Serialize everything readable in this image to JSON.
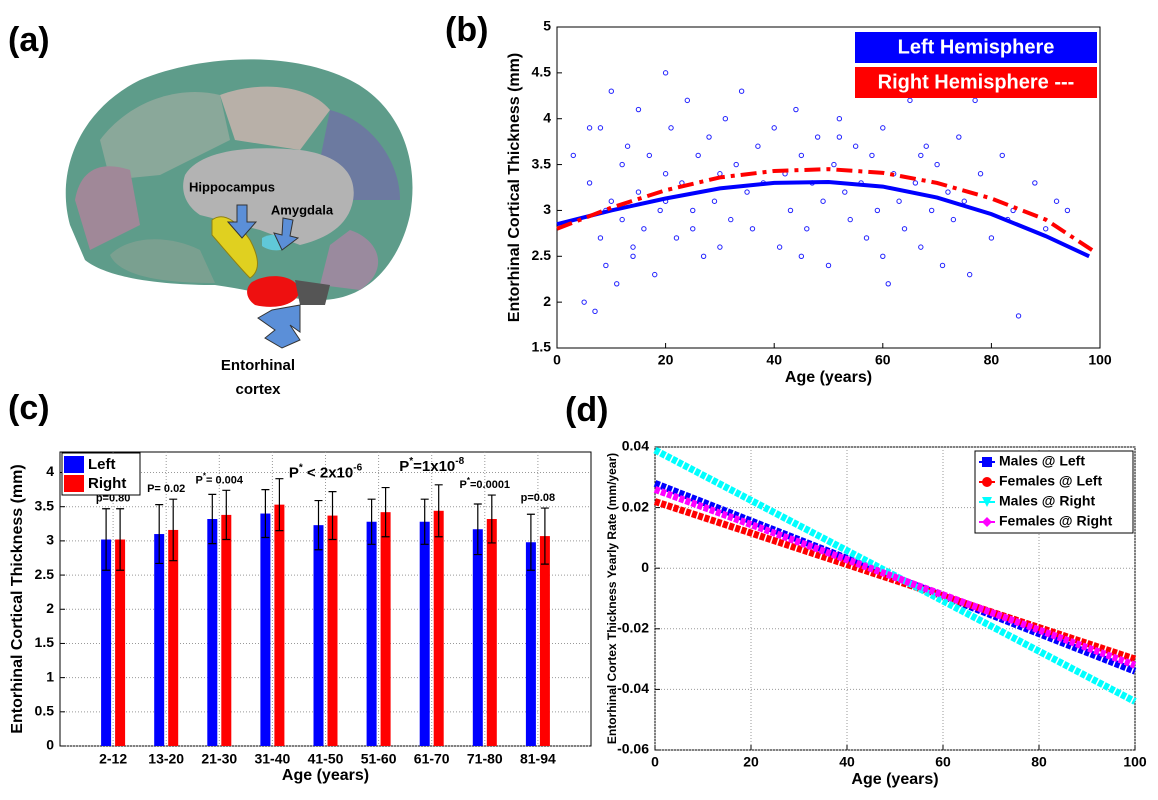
{
  "brain_panel": {
    "panel_label": "(a)",
    "labels": [
      "Hippocampus",
      "Amygdala"
    ],
    "entorhinal_label": [
      "Entorhinal",
      "cortex"
    ]
  },
  "chart_data": [
    {
      "panel_label": "(b)",
      "type": "scatter",
      "xlabel": "Age (years)",
      "ylabel": "Entorhinal Cortical Thickness (mm)",
      "xlim": [
        0,
        100
      ],
      "ylim": [
        1.5,
        5
      ],
      "xticks": [
        0,
        20,
        40,
        60,
        80,
        100
      ],
      "yticks": [
        1.5,
        2,
        2.5,
        3,
        3.5,
        4,
        4.5,
        5
      ],
      "legend": "upper right",
      "points": {
        "color": "#2222ff",
        "x": [
          3,
          5,
          6,
          7,
          8,
          8,
          9,
          10,
          10,
          11,
          12,
          12,
          13,
          14,
          15,
          15,
          16,
          17,
          18,
          19,
          20,
          20,
          21,
          22,
          23,
          24,
          25,
          26,
          27,
          28,
          29,
          30,
          31,
          32,
          33,
          34,
          35,
          36,
          37,
          38,
          40,
          41,
          42,
          43,
          44,
          45,
          46,
          47,
          48,
          49,
          50,
          51,
          52,
          53,
          54,
          55,
          56,
          57,
          58,
          59,
          60,
          61,
          62,
          63,
          64,
          65,
          66,
          67,
          68,
          69,
          70,
          71,
          72,
          73,
          74,
          75,
          76,
          78,
          80,
          82,
          84,
          85,
          88,
          90,
          92,
          94,
          6,
          9,
          14,
          20,
          25,
          30,
          45,
          52,
          60,
          67,
          77,
          83
        ],
        "y": [
          3.6,
          2.0,
          3.3,
          1.9,
          2.7,
          3.9,
          2.4,
          3.1,
          4.3,
          2.2,
          3.5,
          2.9,
          3.7,
          2.6,
          4.1,
          3.2,
          2.8,
          3.6,
          2.3,
          3.0,
          4.5,
          3.4,
          3.9,
          2.7,
          3.3,
          4.2,
          3.0,
          3.6,
          2.5,
          3.8,
          3.1,
          3.4,
          4.0,
          2.9,
          3.5,
          4.3,
          3.2,
          2.8,
          3.7,
          3.3,
          3.9,
          2.6,
          3.4,
          3.0,
          4.1,
          3.6,
          2.8,
          3.3,
          3.8,
          3.1,
          2.4,
          3.5,
          4.0,
          3.2,
          2.9,
          3.7,
          3.3,
          2.7,
          3.6,
          3.0,
          3.9,
          2.2,
          3.4,
          3.1,
          2.8,
          4.2,
          3.3,
          2.6,
          3.7,
          3.0,
          3.5,
          2.4,
          3.2,
          2.9,
          3.8,
          3.1,
          2.3,
          3.4,
          2.7,
          3.6,
          3.0,
          1.85,
          3.3,
          2.8,
          3.1,
          3.0,
          3.9,
          3.0,
          2.5,
          3.1,
          2.8,
          2.6,
          2.5,
          3.8,
          2.5,
          3.6,
          4.2,
          2.9
        ]
      },
      "series": [
        {
          "name": "Left Hemisphere",
          "color": "#0000ff",
          "dash": "solid",
          "x": [
            0,
            10,
            20,
            30,
            40,
            50,
            60,
            70,
            80,
            90,
            98
          ],
          "values": [
            2.85,
            3.0,
            3.13,
            3.24,
            3.3,
            3.31,
            3.26,
            3.14,
            2.96,
            2.72,
            2.5
          ]
        },
        {
          "name": "Right Hemisphere ---",
          "color": "#ff0000",
          "dash": "dashdot",
          "x": [
            0,
            10,
            20,
            30,
            40,
            50,
            60,
            70,
            80,
            90,
            99
          ],
          "values": [
            2.8,
            3.03,
            3.22,
            3.36,
            3.43,
            3.45,
            3.41,
            3.3,
            3.13,
            2.9,
            2.55
          ]
        }
      ]
    },
    {
      "panel_label": "(c)",
      "type": "bar",
      "xlabel": "Age (years)",
      "ylabel": "Entorhinal Cortical Thickness (mm)",
      "categories": [
        "2-12",
        "13-20",
        "21-30",
        "31-40",
        "41-50",
        "51-60",
        "61-70",
        "71-80",
        "81-94"
      ],
      "ylim": [
        0,
        4.3
      ],
      "yticks": [
        0,
        0.5,
        1,
        1.5,
        2,
        2.5,
        3,
        3.5,
        4
      ],
      "grid": true,
      "legend": "upper left",
      "series": [
        {
          "name": "Left",
          "color": "#0000ff",
          "values": [
            3.02,
            3.1,
            3.32,
            3.4,
            3.23,
            3.28,
            3.28,
            3.17,
            2.98
          ],
          "errors": [
            0.45,
            0.43,
            0.36,
            0.35,
            0.36,
            0.33,
            0.33,
            0.37,
            0.41
          ]
        },
        {
          "name": "Right",
          "color": "#ff0000",
          "values": [
            3.02,
            3.16,
            3.38,
            3.53,
            3.37,
            3.42,
            3.44,
            3.32,
            3.07
          ],
          "errors": [
            0.45,
            0.45,
            0.36,
            0.38,
            0.35,
            0.36,
            0.38,
            0.35,
            0.41
          ]
        }
      ],
      "annotations": [
        [
          "p=0.80"
        ],
        [
          "P= 0.02"
        ],
        [
          "P",
          "*",
          "= 0.004"
        ],
        [],
        [
          "P",
          "*",
          " < 2x10",
          "-6"
        ],
        [],
        [
          "P",
          "*",
          "=1x10",
          "-8"
        ],
        [
          "P",
          "*",
          "=0.0001"
        ],
        [
          "p=0.08"
        ]
      ]
    },
    {
      "panel_label": "(d)",
      "type": "line",
      "xlabel": "Age (years)",
      "ylabel": "Entorhinal Cortex Thickness Yearly Rate (mm/year)",
      "xlim": [
        0,
        100
      ],
      "ylim": [
        -0.06,
        0.04
      ],
      "xticks": [
        0,
        20,
        40,
        60,
        80,
        100
      ],
      "yticks": [
        -0.06,
        -0.04,
        -0.02,
        0,
        0.02,
        0.04
      ],
      "grid": true,
      "legend": "upper right",
      "x": [
        0,
        100
      ],
      "series": [
        {
          "name": "Males @ Left",
          "color": "#0000ff",
          "marker": "square",
          "values": [
            0.028,
            -0.034
          ]
        },
        {
          "name": "Females @ Left",
          "color": "#ff0000",
          "marker": "circle",
          "values": [
            0.022,
            -0.03
          ]
        },
        {
          "name": "Males @ Right",
          "color": "#00ffff",
          "marker": "triangle",
          "values": [
            0.039,
            -0.044
          ]
        },
        {
          "name": "Females @ Right",
          "color": "#ff00ff",
          "marker": "diamond",
          "values": [
            0.026,
            -0.032
          ]
        }
      ]
    }
  ]
}
